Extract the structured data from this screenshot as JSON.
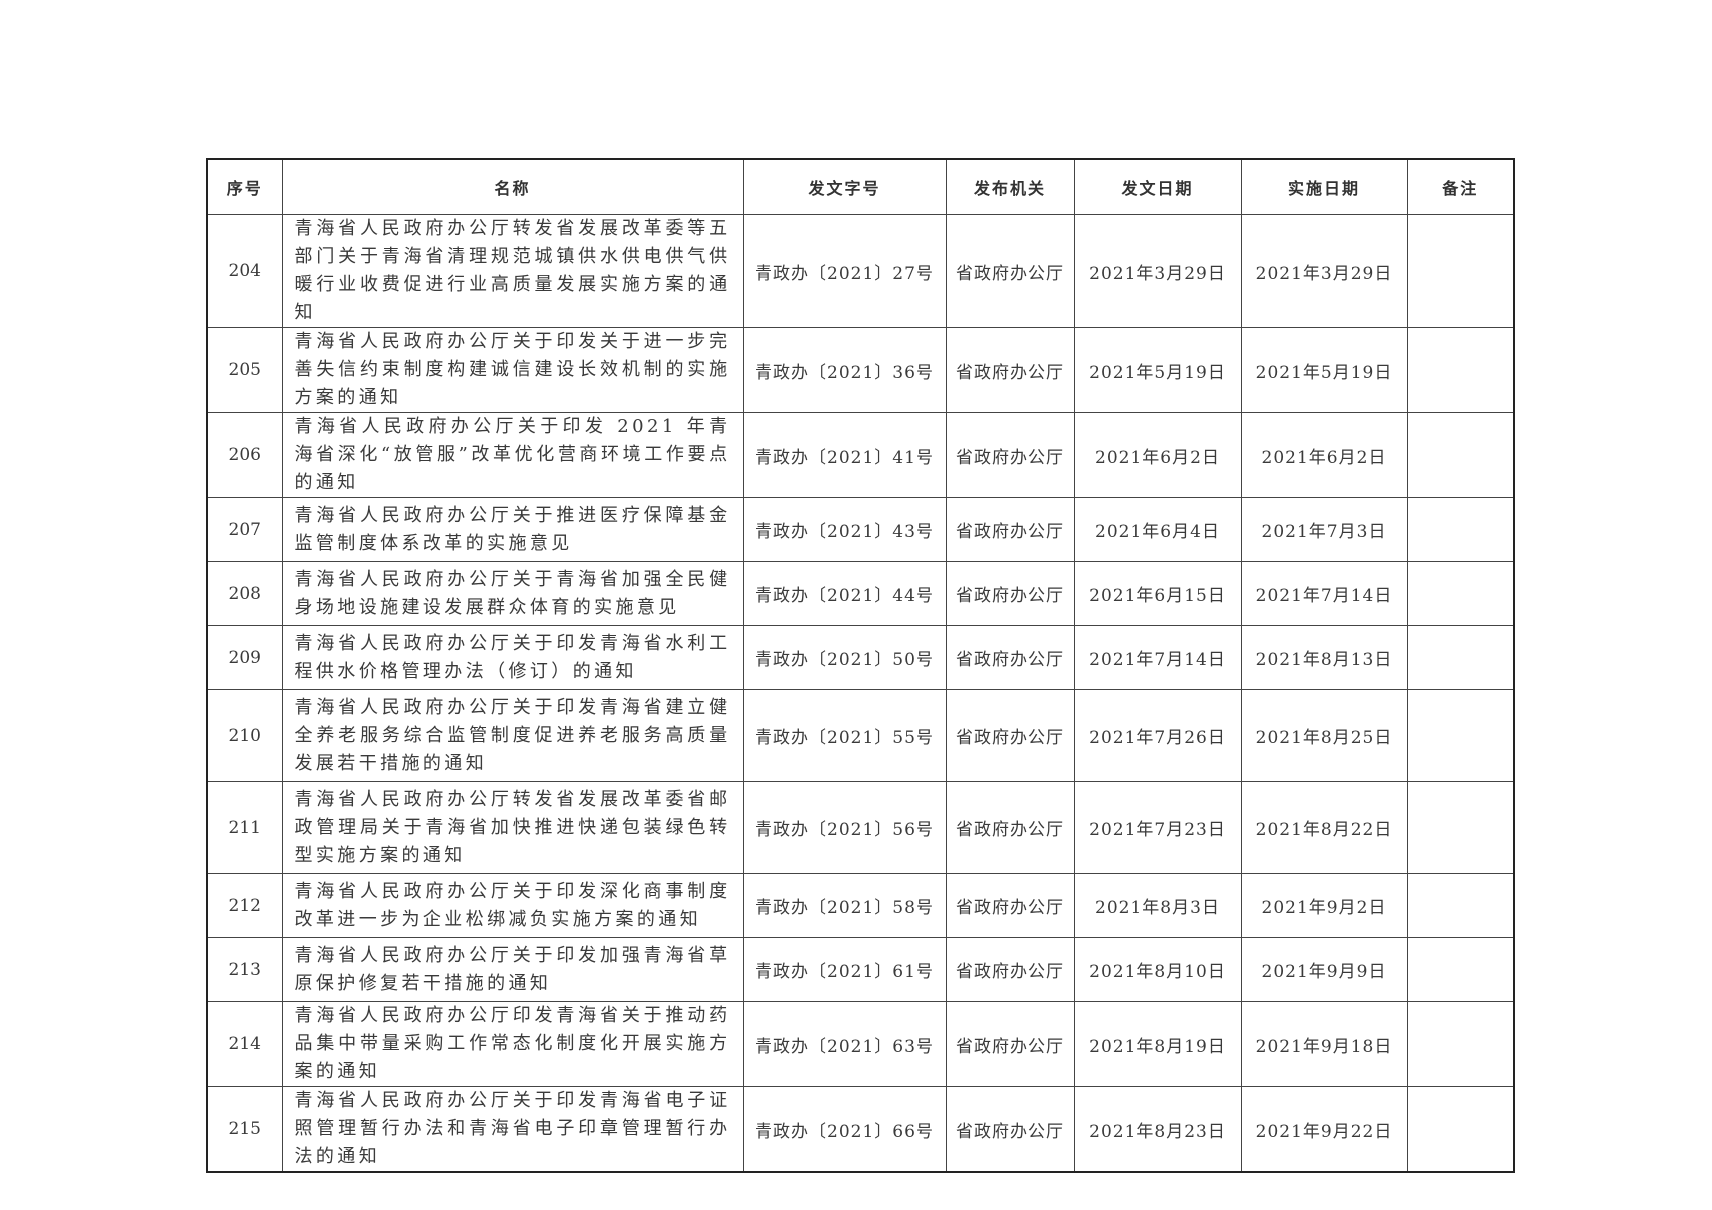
{
  "headers": [
    "序号",
    "名称",
    "发文字号",
    "发布机关",
    "发文日期",
    "实施日期",
    "备注"
  ],
  "rows": [
    {
      "no": "204",
      "name": "青海省人民政府办公厅转发省发展改革委等五部门关于青海省清理规范城镇供水供电供气供暖行业收费促进行业高质量发展实施方案的通知",
      "doc": "青政办〔2021〕27号",
      "org": "省政府办公厅",
      "issue": "2021年3月29日",
      "effective": "2021年3月29日",
      "note": ""
    },
    {
      "no": "205",
      "name": "青海省人民政府办公厅关于印发关于进一步完善失信约束制度构建诚信建设长效机制的实施方案的通知",
      "doc": "青政办〔2021〕36号",
      "org": "省政府办公厅",
      "issue": "2021年5月19日",
      "effective": "2021年5月19日",
      "note": ""
    },
    {
      "no": "206",
      "name": "青海省人民政府办公厅关于印发 2021 年青海省深化“放管服”改革优化营商环境工作要点的通知",
      "doc": "青政办〔2021〕41号",
      "org": "省政府办公厅",
      "issue": "2021年6月2日",
      "effective": "2021年6月2日",
      "note": ""
    },
    {
      "no": "207",
      "name": "青海省人民政府办公厅关于推进医疗保障基金监管制度体系改革的实施意见",
      "doc": "青政办〔2021〕43号",
      "org": "省政府办公厅",
      "issue": "2021年6月4日",
      "effective": "2021年7月3日",
      "note": ""
    },
    {
      "no": "208",
      "name": "青海省人民政府办公厅关于青海省加强全民健身场地设施建设发展群众体育的实施意见",
      "doc": "青政办〔2021〕44号",
      "org": "省政府办公厅",
      "issue": "2021年6月15日",
      "effective": "2021年7月14日",
      "note": ""
    },
    {
      "no": "209",
      "name": "青海省人民政府办公厅关于印发青海省水利工程供水价格管理办法（修订）的通知",
      "doc": "青政办〔2021〕50号",
      "org": "省政府办公厅",
      "issue": "2021年7月14日",
      "effective": "2021年8月13日",
      "note": ""
    },
    {
      "no": "210",
      "name": "青海省人民政府办公厅关于印发青海省建立健全养老服务综合监管制度促进养老服务高质量发展若干措施的通知",
      "doc": "青政办〔2021〕55号",
      "org": "省政府办公厅",
      "issue": "2021年7月26日",
      "effective": "2021年8月25日",
      "note": ""
    },
    {
      "no": "211",
      "name": "青海省人民政府办公厅转发省发展改革委省邮政管理局关于青海省加快推进快递包装绿色转型实施方案的通知",
      "doc": "青政办〔2021〕56号",
      "org": "省政府办公厅",
      "issue": "2021年7月23日",
      "effective": "2021年8月22日",
      "note": ""
    },
    {
      "no": "212",
      "name": "青海省人民政府办公厅关于印发深化商事制度改革进一步为企业松绑减负实施方案的通知",
      "doc": "青政办〔2021〕58号",
      "org": "省政府办公厅",
      "issue": "2021年8月3日",
      "effective": "2021年9月2日",
      "note": ""
    },
    {
      "no": "213",
      "name": "青海省人民政府办公厅关于印发加强青海省草原保护修复若干措施的通知",
      "doc": "青政办〔2021〕61号",
      "org": "省政府办公厅",
      "issue": "2021年8月10日",
      "effective": "2021年9月9日",
      "note": ""
    },
    {
      "no": "214",
      "name": "青海省人民政府办公厅印发青海省关于推动药品集中带量采购工作常态化制度化开展实施方案的通知",
      "doc": "青政办〔2021〕63号",
      "org": "省政府办公厅",
      "issue": "2021年8月19日",
      "effective": "2021年9月18日",
      "note": ""
    },
    {
      "no": "215",
      "name": "青海省人民政府办公厅关于印发青海省电子证照管理暂行办法和青海省电子印章管理暂行办法的通知",
      "doc": "青政办〔2021〕66号",
      "org": "省政府办公厅",
      "issue": "2021年8月23日",
      "effective": "2021年9月22日",
      "note": ""
    }
  ]
}
